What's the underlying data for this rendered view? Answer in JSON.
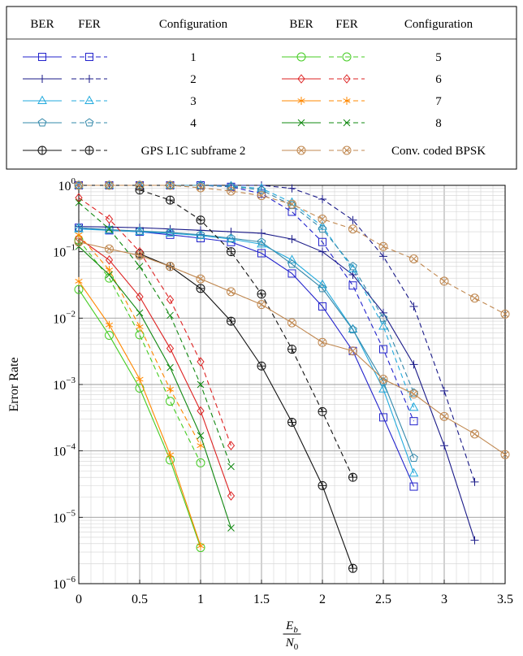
{
  "chart_data": {
    "type": "line",
    "xlabel_num": "E",
    "xlabel_num_sub": "b",
    "xlabel_den": "N",
    "xlabel_den_sub": "0",
    "ylabel": "Error Rate",
    "xlim": [
      0,
      3.5
    ],
    "ylim": [
      1e-06,
      1
    ],
    "yscale": "log",
    "grid": true,
    "x_ticks": [
      "0",
      "0.5",
      "1",
      "1.5",
      "2",
      "2.5",
      "3",
      "3.5"
    ],
    "y_ticks": [
      {
        "mant": "10",
        "exp": "0"
      },
      {
        "mant": "10",
        "exp": "−1"
      },
      {
        "mant": "10",
        "exp": "−2"
      },
      {
        "mant": "10",
        "exp": "−3"
      },
      {
        "mant": "10",
        "exp": "−4"
      },
      {
        "mant": "10",
        "exp": "−5"
      },
      {
        "mant": "10",
        "exp": "−6"
      }
    ],
    "legend": {
      "placement": "top",
      "headers": [
        "BER",
        "FER",
        "Configuration",
        "BER",
        "FER",
        "Configuration"
      ],
      "entries": [
        "1",
        "2",
        "3",
        "4",
        "GPS L1C subframe 2",
        "5",
        "6",
        "7",
        "8",
        "Conv. coded BPSK"
      ]
    },
    "series": [
      {
        "name": "1",
        "color": "#2222cc",
        "marker": "square",
        "ber": {
          "x": [
            0,
            0.25,
            0.5,
            0.75,
            1,
            1.25,
            1.5,
            1.75,
            2,
            2.25,
            2.5,
            2.75
          ],
          "y": [
            0.23,
            0.21,
            0.2,
            0.18,
            0.16,
            0.14,
            0.095,
            0.047,
            0.015,
            0.0032,
            0.00032,
            2.9e-05
          ]
        },
        "fer": {
          "x": [
            0,
            0.25,
            0.5,
            0.75,
            1,
            1.25,
            1.5,
            1.75,
            2,
            2.25,
            2.5,
            2.75
          ],
          "y": [
            1,
            1,
            1,
            1,
            1,
            0.95,
            0.75,
            0.4,
            0.14,
            0.031,
            0.0034,
            0.00028
          ]
        }
      },
      {
        "name": "2",
        "color": "#1a1a88",
        "marker": "plus",
        "ber": {
          "x": [
            0,
            0.25,
            0.5,
            0.75,
            1,
            1.25,
            1.5,
            1.75,
            2,
            2.25,
            2.5,
            2.75,
            3,
            3.25
          ],
          "y": [
            0.24,
            0.235,
            0.23,
            0.22,
            0.21,
            0.2,
            0.19,
            0.155,
            0.1,
            0.045,
            0.012,
            0.002,
            0.00012,
            4.5e-06
          ]
        },
        "fer": {
          "x": [
            0,
            0.25,
            0.5,
            0.75,
            1,
            1.25,
            1.5,
            1.75,
            2,
            2.25,
            2.5,
            2.75,
            3,
            3.25
          ],
          "y": [
            1,
            1,
            1,
            1,
            1,
            1,
            1,
            0.9,
            0.62,
            0.3,
            0.085,
            0.015,
            0.0008,
            3.4e-05
          ]
        }
      },
      {
        "name": "3",
        "color": "#22aadd",
        "marker": "triangle",
        "ber": {
          "x": [
            0,
            0.25,
            0.5,
            0.75,
            1,
            1.25,
            1.5,
            1.75,
            2,
            2.25,
            2.5,
            2.75
          ],
          "y": [
            0.22,
            0.21,
            0.2,
            0.19,
            0.175,
            0.155,
            0.13,
            0.075,
            0.032,
            0.0068,
            0.00085,
            4.6e-05
          ]
        },
        "fer": {
          "x": [
            0,
            0.25,
            0.5,
            0.75,
            1,
            1.25,
            1.5,
            1.75,
            2,
            2.25,
            2.5,
            2.75
          ],
          "y": [
            1,
            1,
            1,
            1,
            1,
            0.97,
            0.9,
            0.55,
            0.24,
            0.055,
            0.0075,
            0.00045
          ]
        }
      },
      {
        "name": "4",
        "color": "#3388aa",
        "marker": "pentagon",
        "ber": {
          "x": [
            0,
            0.25,
            0.5,
            0.75,
            1,
            1.25,
            1.5,
            1.75,
            2,
            2.25,
            2.5,
            2.75
          ],
          "y": [
            0.23,
            0.215,
            0.205,
            0.195,
            0.18,
            0.16,
            0.14,
            0.065,
            0.028,
            0.0067,
            0.0011,
            7.8e-05
          ]
        },
        "fer": {
          "x": [
            0,
            0.25,
            0.5,
            0.75,
            1,
            1.25,
            1.5,
            1.75,
            2,
            2.25,
            2.5,
            2.75
          ],
          "y": [
            1,
            1,
            1,
            1,
            1,
            0.96,
            0.85,
            0.5,
            0.22,
            0.06,
            0.01,
            0.00075
          ]
        }
      },
      {
        "name": "GPS L1C subframe 2",
        "color": "#111111",
        "marker": "oplus",
        "ber": {
          "x": [
            0.5,
            0.75,
            1,
            1.25,
            1.5,
            1.75,
            2,
            2.25
          ],
          "y": [
            0.093,
            0.06,
            0.028,
            0.009,
            0.0019,
            0.00027,
            3e-05,
            1.7e-06
          ]
        },
        "fer": {
          "x": [
            0.5,
            0.75,
            1,
            1.25,
            1.5,
            1.75,
            2,
            2.25
          ],
          "y": [
            0.85,
            0.6,
            0.3,
            0.1,
            0.023,
            0.0034,
            0.00039,
            4e-05
          ]
        }
      },
      {
        "name": "5",
        "color": "#44cc22",
        "marker": "circle",
        "ber": {
          "x": [
            0,
            0.25,
            0.5,
            0.75,
            1
          ],
          "y": [
            0.027,
            0.0055,
            0.00088,
            7.3e-05,
            3.5e-06
          ]
        },
        "fer": {
          "x": [
            0,
            0.25,
            0.5,
            0.75,
            1
          ],
          "y": [
            0.15,
            0.04,
            0.0056,
            0.00056,
            6.6e-05
          ]
        }
      },
      {
        "name": "6",
        "color": "#dd2222",
        "marker": "diamond",
        "ber": {
          "x": [
            0,
            0.25,
            0.5,
            0.75,
            1,
            1.25
          ],
          "y": [
            0.16,
            0.075,
            0.021,
            0.0035,
            0.0004,
            2.1e-05
          ]
        },
        "fer": {
          "x": [
            0,
            0.25,
            0.5,
            0.75,
            1,
            1.25
          ],
          "y": [
            0.65,
            0.31,
            0.1,
            0.019,
            0.0022,
            0.00012
          ]
        }
      },
      {
        "name": "7",
        "color": "#ff8800",
        "marker": "star",
        "ber": {
          "x": [
            0,
            0.25,
            0.5,
            0.75,
            1
          ],
          "y": [
            0.036,
            0.0079,
            0.0012,
            8.7e-05,
            3.7e-06
          ]
        },
        "fer": {
          "x": [
            0,
            0.25,
            0.5,
            0.75,
            1
          ],
          "y": [
            0.18,
            0.053,
            0.0074,
            0.00085,
            0.00012
          ]
        }
      },
      {
        "name": "8",
        "color": "#118811",
        "marker": "cross",
        "ber": {
          "x": [
            0,
            0.25,
            0.5,
            0.75,
            1,
            1.25
          ],
          "y": [
            0.12,
            0.045,
            0.012,
            0.0018,
            0.00017,
            6.9e-06
          ]
        },
        "fer": {
          "x": [
            0,
            0.25,
            0.5,
            0.75,
            1,
            1.25
          ],
          "y": [
            0.55,
            0.22,
            0.06,
            0.011,
            0.001,
            5.8e-05
          ]
        }
      },
      {
        "name": "Conv. coded BPSK",
        "color": "#c08850",
        "marker": "otimes",
        "ber": {
          "x": [
            0,
            0.25,
            0.5,
            0.75,
            1,
            1.25,
            1.5,
            1.75,
            2,
            2.25,
            2.5,
            2.75,
            3,
            3.25,
            3.5
          ],
          "y": [
            0.14,
            0.11,
            0.088,
            0.06,
            0.039,
            0.025,
            0.016,
            0.0085,
            0.0043,
            0.0032,
            0.0012,
            0.00072,
            0.00033,
            0.00018,
            8.8e-05
          ]
        },
        "fer": {
          "x": [
            0,
            0.25,
            0.5,
            0.75,
            1,
            1.25,
            1.5,
            1.75,
            2,
            2.25,
            2.5,
            2.75,
            3,
            3.25,
            3.5
          ],
          "y": [
            1,
            1,
            1,
            1,
            0.92,
            0.82,
            0.7,
            0.52,
            0.31,
            0.22,
            0.12,
            0.078,
            0.036,
            0.02,
            0.0115
          ]
        }
      }
    ]
  }
}
